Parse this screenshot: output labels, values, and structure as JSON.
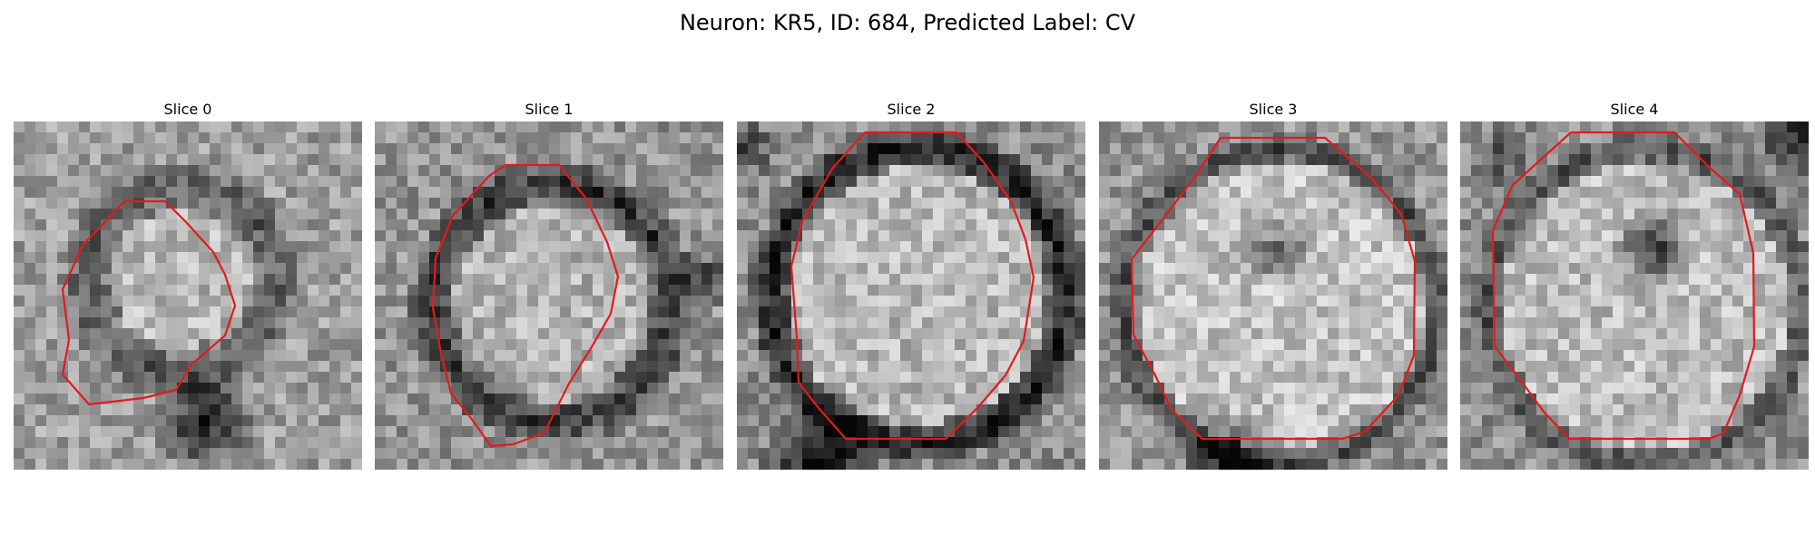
{
  "figure": {
    "title": "Neuron: KR5, ID: 684, Predicted Label: CV"
  },
  "slices": [
    {
      "title": "Slice 0",
      "contour_color": "#e31a1c"
    },
    {
      "title": "Slice 1",
      "contour_color": "#e31a1c"
    },
    {
      "title": "Slice 2",
      "contour_color": "#e31a1c"
    },
    {
      "title": "Slice 3",
      "contour_color": "#e31a1c"
    },
    {
      "title": "Slice 4",
      "contour_color": "#e31a1c"
    }
  ]
}
